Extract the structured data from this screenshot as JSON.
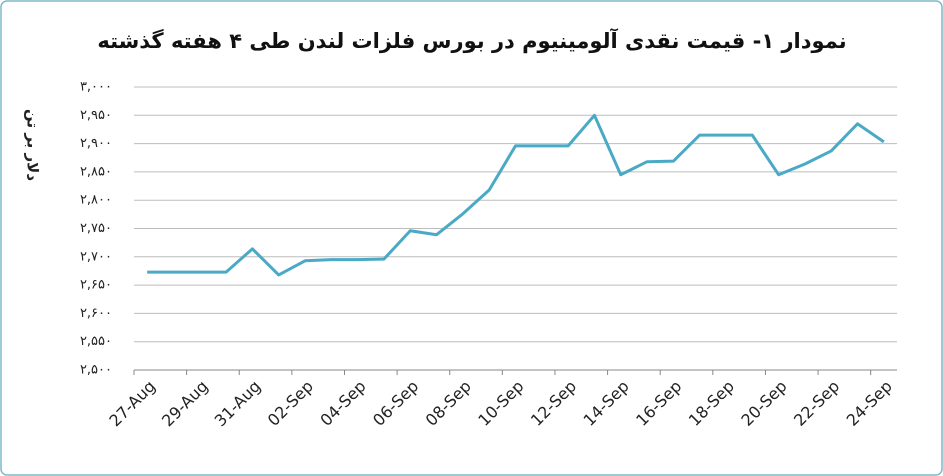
{
  "chart_data": {
    "type": "line",
    "title": "نمودار ۱- قیمت نقدی آلومینیوم در بورس فلزات لندن طی ۴ هفته گذشته",
    "y_label": "دلار بر تن",
    "categories": [
      "27-Aug",
      null,
      "29-Aug",
      null,
      "31-Aug",
      null,
      "02-Sep",
      null,
      "04-Sep",
      null,
      "06-Sep",
      null,
      "08-Sep",
      null,
      "10-Sep",
      null,
      "12-Sep",
      null,
      "14-Sep",
      null,
      "16-Sep",
      null,
      "18-Sep",
      null,
      "20-Sep",
      null,
      "22-Sep",
      null,
      "24-Sep"
    ],
    "series": [
      {
        "name": "آلومینیوم",
        "color": "#4aaac6",
        "values": [
          2673,
          2673,
          2673,
          2673,
          2714,
          2668,
          2693,
          2695,
          2695,
          2696,
          2746,
          2739,
          2776,
          2818,
          2896,
          2896,
          2896,
          2950,
          2845,
          2868,
          2869,
          2915,
          2915,
          2915,
          2845,
          2864,
          2887,
          2935,
          2903
        ]
      }
    ],
    "ylim": [
      2500,
      3000
    ],
    "yticks": [
      {
        "value": 2500,
        "label": "۲,۵۰۰"
      },
      {
        "value": 2550,
        "label": "۲,۵۵۰"
      },
      {
        "value": 2600,
        "label": "۲,۶۰۰"
      },
      {
        "value": 2650,
        "label": "۲,۶۵۰"
      },
      {
        "value": 2700,
        "label": "۲,۷۰۰"
      },
      {
        "value": 2750,
        "label": "۲,۷۵۰"
      },
      {
        "value": 2800,
        "label": "۲,۸۰۰"
      },
      {
        "value": 2850,
        "label": "۲,۸۵۰"
      },
      {
        "value": 2900,
        "label": "۲,۹۰۰"
      },
      {
        "value": 2950,
        "label": "۲,۹۵۰"
      },
      {
        "value": 3000,
        "label": "۳,۰۰۰"
      }
    ],
    "grid": true
  }
}
